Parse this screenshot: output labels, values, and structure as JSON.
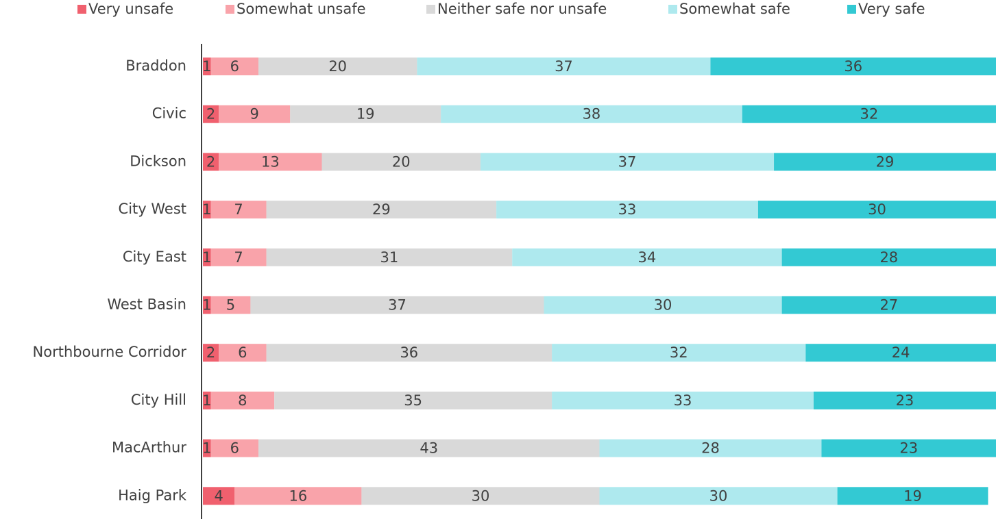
{
  "chart_data": {
    "type": "stacked-bar-horizontal",
    "categories": [
      "Braddon",
      "Civic",
      "Dickson",
      "City West",
      "City East",
      "West Basin",
      "Northbourne Corridor",
      "City Hill",
      "MacArthur",
      "Haig Park"
    ],
    "series": [
      {
        "name": "Very unsafe",
        "color": "#f0606e",
        "values": [
          1,
          2,
          2,
          1,
          1,
          1,
          2,
          1,
          1,
          4
        ]
      },
      {
        "name": "Somewhat unsafe",
        "color": "#f9a3aa",
        "values": [
          6,
          9,
          13,
          7,
          7,
          5,
          6,
          8,
          6,
          16
        ]
      },
      {
        "name": "Neither safe nor unsafe",
        "color": "#d9d9d9",
        "values": [
          20,
          19,
          20,
          29,
          31,
          37,
          36,
          35,
          43,
          30
        ]
      },
      {
        "name": "Somewhat safe",
        "color": "#aee9ee",
        "values": [
          37,
          38,
          37,
          33,
          34,
          30,
          32,
          33,
          28,
          30
        ]
      },
      {
        "name": "Very safe",
        "color": "#33c9d3",
        "values": [
          36,
          32,
          29,
          30,
          28,
          27,
          24,
          23,
          23,
          19
        ]
      }
    ],
    "xlim": [
      0,
      100
    ],
    "legend": "top"
  }
}
